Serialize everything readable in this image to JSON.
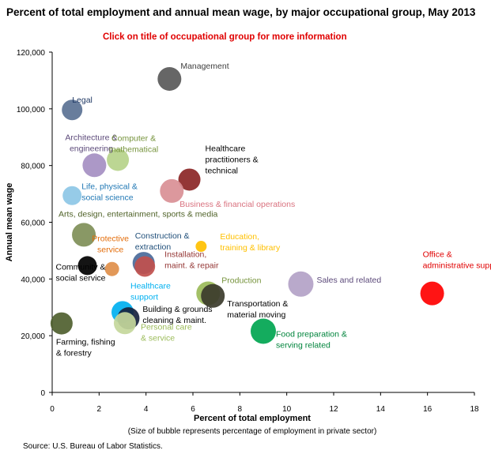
{
  "title": "Percent of total employment and annual mean wage, by major occupational group, May 2013",
  "subtitle": "Click on title of occupational group for more information",
  "source": "Source: U.S. Bureau of Labor Statistics.",
  "chart_data": {
    "type": "scatter",
    "title": "Percent of total employment and annual mean wage, by major occupational group, May 2013",
    "xlabel": "Percent of total employment",
    "xlabel_note": "(Size of bubble represents percentage of employment in private sector)",
    "ylabel": "Annual mean wage",
    "xlim": [
      0,
      18
    ],
    "ylim": [
      0,
      120000
    ],
    "xticks": [
      "0",
      "2",
      "4",
      "6",
      "8",
      "10",
      "12",
      "14",
      "16",
      "18"
    ],
    "yticks": [
      "0",
      "20,000",
      "40,000",
      "60,000",
      "80,000",
      "100,000",
      "120,000"
    ],
    "grid": false,
    "legend": "none",
    "series": [
      {
        "label_lines": [
          "Management"
        ],
        "x": 5.0,
        "y": 110550,
        "size": 15,
        "color": "#595959",
        "label_color": "#404040"
      },
      {
        "label_lines": [
          "Legal"
        ],
        "x": 0.85,
        "y": 99620,
        "size": 13,
        "color": "#5b7294",
        "label_color": "#1f3864"
      },
      {
        "label_lines": [
          "Architecture &",
          "engineering"
        ],
        "x": 1.8,
        "y": 80100,
        "size": 15,
        "color": "#a58fc2",
        "label_color": "#5c4a7a"
      },
      {
        "label_lines": [
          "Computer &",
          "mathematical"
        ],
        "x": 2.8,
        "y": 82010,
        "size": 14,
        "color": "#b6d28a",
        "label_color": "#76933c"
      },
      {
        "label_lines": [
          "Healthcare",
          "practitioners &",
          "technical"
        ],
        "x": 5.85,
        "y": 75040,
        "size": 14,
        "color": "#8b2525",
        "label_color": "#000000"
      },
      {
        "label_lines": [
          "Business & financial operations"
        ],
        "x": 5.1,
        "y": 71020,
        "size": 15,
        "color": "#d98f95",
        "label_color": "#d9727f"
      },
      {
        "label_lines": [
          "Life, physical &",
          "social science"
        ],
        "x": 0.85,
        "y": 69400,
        "size": 12,
        "color": "#8dc7e6",
        "label_color": "#1f77b4"
      },
      {
        "label_lines": [
          "Arts, design, entertainment, sports & media"
        ],
        "x": 1.35,
        "y": 55580,
        "size": 15,
        "color": "#7f8f58",
        "label_color": "#4f6228"
      },
      {
        "label_lines": [
          "Education,",
          "training & library"
        ],
        "x": 6.35,
        "y": 51500,
        "size": 7,
        "color": "#ffc000",
        "label_color": "#ffc000"
      },
      {
        "label_lines": [
          "Construction &",
          "extraction"
        ],
        "x": 3.9,
        "y": 45630,
        "size": 14,
        "color": "#4a6a9a",
        "label_color": "#1f4e79"
      },
      {
        "label_lines": [
          "Installation,",
          "maint. & repair"
        ],
        "x": 3.95,
        "y": 44420,
        "size": 13,
        "color": "#c0504d",
        "label_color": "#943634"
      },
      {
        "label_lines": [
          "Protective",
          "service"
        ],
        "x": 2.55,
        "y": 43510,
        "size": 9,
        "color": "#e08f4a",
        "label_color": "#e36c09"
      },
      {
        "label_lines": [
          "Community &",
          "social service"
        ],
        "x": 1.5,
        "y": 44710,
        "size": 12,
        "color": "#000000",
        "label_color": "#000000"
      },
      {
        "label_lines": [
          "Office &",
          "administrative support"
        ],
        "x": 16.2,
        "y": 34900,
        "size": 15,
        "color": "#ff0000",
        "label_color": "#e00000"
      },
      {
        "label_lines": [
          "Sales and related"
        ],
        "x": 10.6,
        "y": 38200,
        "size": 16,
        "color": "#b3a2c7",
        "label_color": "#5c4a7a"
      },
      {
        "label_lines": [
          "Production"
        ],
        "x": 6.65,
        "y": 34930,
        "size": 15,
        "color": "#9bbb59",
        "label_color": "#76933c"
      },
      {
        "label_lines": [
          "Transportation &",
          "material moving"
        ],
        "x": 6.85,
        "y": 34030,
        "size": 15,
        "color": "#3b3b2b",
        "label_color": "#000000"
      },
      {
        "label_lines": [
          "Healthcare",
          "support"
        ],
        "x": 3.0,
        "y": 28300,
        "size": 14,
        "color": "#00b0f0",
        "label_color": "#00b0f0"
      },
      {
        "label_lines": [
          "Building & grounds",
          "cleaning & maint."
        ],
        "x": 3.25,
        "y": 26130,
        "size": 14,
        "color": "#17233d",
        "label_color": "#000000"
      },
      {
        "label_lines": [
          "Personal care",
          "& service"
        ],
        "x": 3.1,
        "y": 24420,
        "size": 14,
        "color": "#c4d79b",
        "label_color": "#9bbb59"
      },
      {
        "label_lines": [
          "Farming, fishing",
          "& forestry"
        ],
        "x": 0.4,
        "y": 24330,
        "size": 14,
        "color": "#4f5f2f",
        "label_color": "#000000"
      },
      {
        "label_lines": [
          "Food preparation &",
          "serving related"
        ],
        "x": 9.0,
        "y": 21580,
        "size": 16,
        "color": "#00a550",
        "label_color": "#00843c"
      }
    ]
  }
}
